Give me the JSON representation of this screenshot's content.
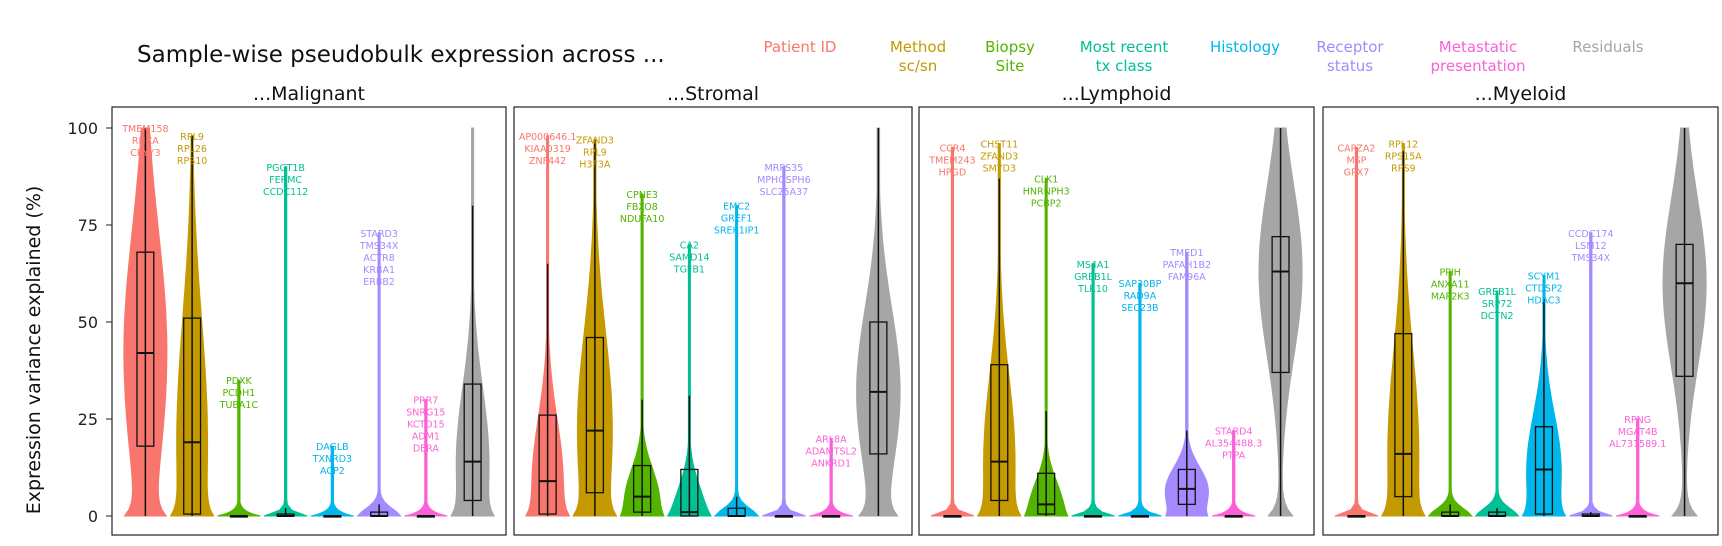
{
  "chart_data": {
    "type": "violin",
    "title": "Sample-wise pseudobulk expression across ...",
    "ylabel": "Expression variance explained (%)",
    "ylim": [
      0,
      100
    ],
    "yticks": [
      0,
      25,
      50,
      75,
      100
    ],
    "legend_placement": "top",
    "legend": [
      {
        "label": "Patient ID",
        "color": "#F8766D"
      },
      {
        "label": "Method\nsc/sn",
        "color": "#C49A00"
      },
      {
        "label": "Biopsy\nSite",
        "color": "#53B400"
      },
      {
        "label": "Most recent\ntx class",
        "color": "#00C094"
      },
      {
        "label": "Histology",
        "color": "#00B6EB"
      },
      {
        "label": "Receptor\nstatus",
        "color": "#A58AFF"
      },
      {
        "label": "Metastatic\npresentation",
        "color": "#FB61D7"
      },
      {
        "label": "Residuals",
        "color": "#A6A6A6"
      }
    ],
    "panels": [
      {
        "title": "...Malignant",
        "violins": [
          {
            "median": 42,
            "q1": 18,
            "q3": 68,
            "wlo": 0,
            "whi": 100,
            "max": 100,
            "genes": [
              "TMEM158",
              "RHCA",
              "CRYY3"
            ]
          },
          {
            "median": 19,
            "q1": 0.5,
            "q3": 51,
            "wlo": 0,
            "whi": 98,
            "max": 98,
            "genes": [
              "RPL9",
              "RPL26",
              "RPS10"
            ]
          },
          {
            "median": 0,
            "q1": 0,
            "q3": 0,
            "wlo": 0,
            "whi": 0,
            "max": 35,
            "genes": [
              "PDXK",
              "PCDH1",
              "TUBA1C"
            ]
          },
          {
            "median": 0,
            "q1": 0,
            "q3": 0.5,
            "wlo": 0,
            "whi": 2,
            "max": 90,
            "genes": [
              "PGGT1B",
              "FERMC",
              "CCDC112"
            ]
          },
          {
            "median": 0,
            "q1": 0,
            "q3": 0,
            "wlo": 0,
            "whi": 0,
            "max": 18,
            "genes": [
              "DAGLB",
              "TXNRD3",
              "ACP2"
            ]
          },
          {
            "median": 0,
            "q1": 0,
            "q3": 1,
            "wlo": 0,
            "whi": 3,
            "max": 73,
            "genes": [
              "STARD3",
              "TMS34X",
              "ACTR8",
              "KRBA1",
              "ERBB2"
            ]
          },
          {
            "median": 0,
            "q1": 0,
            "q3": 0,
            "wlo": 0,
            "whi": 0,
            "max": 30,
            "genes": [
              "PRR7",
              "SNRG15",
              "KCTD15",
              "ADM1",
              "DERA"
            ]
          },
          {
            "median": 14,
            "q1": 4,
            "q3": 34,
            "wlo": 0,
            "whi": 80,
            "max": 100,
            "genes": []
          }
        ]
      },
      {
        "title": "...Stromal",
        "violins": [
          {
            "median": 9,
            "q1": 0.5,
            "q3": 26,
            "wlo": 0,
            "whi": 65,
            "max": 98,
            "genes": [
              "AP000646.1",
              "KIAA0319",
              "ZNF442"
            ]
          },
          {
            "median": 22,
            "q1": 6,
            "q3": 46,
            "wlo": 0,
            "whi": 97,
            "max": 97,
            "genes": [
              "ZFAND3",
              "RPL9",
              "H3F3A"
            ]
          },
          {
            "median": 5,
            "q1": 1,
            "q3": 13,
            "wlo": 0,
            "whi": 30,
            "max": 83,
            "genes": [
              "CPNE3",
              "FBXO8",
              "NDUFA10"
            ]
          },
          {
            "median": 1,
            "q1": 0,
            "q3": 12,
            "wlo": 0,
            "whi": 31,
            "max": 70,
            "genes": [
              "CA2",
              "SAMD14",
              "TGFB1"
            ]
          },
          {
            "median": 0,
            "q1": 0,
            "q3": 2,
            "wlo": 0,
            "whi": 5,
            "max": 80,
            "genes": [
              "EMC2",
              "GREF1",
              "SREK1IP1"
            ]
          },
          {
            "median": 0,
            "q1": 0,
            "q3": 0,
            "wlo": 0,
            "whi": 0,
            "max": 90,
            "genes": [
              "MRPS35",
              "MPHOSPH6",
              "SLC25A37"
            ]
          },
          {
            "median": 0,
            "q1": 0,
            "q3": 0,
            "wlo": 0,
            "whi": 0,
            "max": 20,
            "genes": [
              "ARL8A",
              "ADAMTSL2",
              "ANKRD1"
            ]
          },
          {
            "median": 32,
            "q1": 16,
            "q3": 50,
            "wlo": 0,
            "whi": 100,
            "max": 100,
            "genes": []
          }
        ]
      },
      {
        "title": "...Lymphoid",
        "violins": [
          {
            "median": 0,
            "q1": 0,
            "q3": 0,
            "wlo": 0,
            "whi": 0,
            "max": 95,
            "genes": [
              "CCR4",
              "TMEM243",
              "HPGD"
            ]
          },
          {
            "median": 14,
            "q1": 4,
            "q3": 39,
            "wlo": 0,
            "whi": 87,
            "max": 96,
            "genes": [
              "CHST11",
              "ZFAND3",
              "SMYD3"
            ]
          },
          {
            "median": 3,
            "q1": 0.5,
            "q3": 11,
            "wlo": 0,
            "whi": 27,
            "max": 87,
            "genes": [
              "CLK1",
              "HNRNPH3",
              "PCBP2"
            ]
          },
          {
            "median": 0,
            "q1": 0,
            "q3": 0,
            "wlo": 0,
            "whi": 0,
            "max": 65,
            "genes": [
              "MS4A1",
              "GREB1L",
              "TLR10"
            ]
          },
          {
            "median": 0,
            "q1": 0,
            "q3": 0,
            "wlo": 0,
            "whi": 0,
            "max": 60,
            "genes": [
              "SAP30BP",
              "RAD9A",
              "SEC23B"
            ]
          },
          {
            "median": 7,
            "q1": 3,
            "q3": 12,
            "wlo": 0,
            "whi": 22,
            "max": 68,
            "genes": [
              "TMED1",
              "PAFAH1B2",
              "FAM96A"
            ]
          },
          {
            "median": 0,
            "q1": 0,
            "q3": 0,
            "wlo": 0,
            "whi": 0,
            "max": 22,
            "genes": [
              "STARD4",
              "AL354488.3",
              "PTPA"
            ]
          },
          {
            "median": 63,
            "q1": 37,
            "q3": 72,
            "wlo": 0,
            "whi": 100,
            "max": 100,
            "genes": []
          }
        ]
      },
      {
        "title": "...Myeloid",
        "violins": [
          {
            "median": 0,
            "q1": 0,
            "q3": 0,
            "wlo": 0,
            "whi": 0,
            "max": 95,
            "genes": [
              "CAPZA2",
              "MSP",
              "GPX7"
            ]
          },
          {
            "median": 16,
            "q1": 5,
            "q3": 47,
            "wlo": 0,
            "whi": 94,
            "max": 96,
            "genes": [
              "RPL12",
              "RPS15A",
              "RPS9"
            ]
          },
          {
            "median": 0,
            "q1": 0,
            "q3": 1,
            "wlo": 0,
            "whi": 3,
            "max": 63,
            "genes": [
              "PPIH",
              "ANXA11",
              "MAP2K3"
            ]
          },
          {
            "median": 0,
            "q1": 0,
            "q3": 1,
            "wlo": 0,
            "whi": 2,
            "max": 58,
            "genes": [
              "GREB1L",
              "SRP72",
              "DCTN2"
            ]
          },
          {
            "median": 12,
            "q1": 0.5,
            "q3": 23,
            "wlo": 0,
            "whi": 56,
            "max": 62,
            "genes": [
              "SCYM1",
              "CTDSP2",
              "HDAC3"
            ]
          },
          {
            "median": 0,
            "q1": 0,
            "q3": 0.5,
            "wlo": 0,
            "whi": 1,
            "max": 73,
            "genes": [
              "CCDC174",
              "LSM12",
              "TMS34X"
            ]
          },
          {
            "median": 0,
            "q1": 0,
            "q3": 0,
            "wlo": 0,
            "whi": 0,
            "max": 25,
            "genes": [
              "RPNG",
              "MGAT4B",
              "AL731589.1"
            ]
          },
          {
            "median": 60,
            "q1": 36,
            "q3": 70,
            "wlo": 0,
            "whi": 100,
            "max": 100,
            "genes": []
          }
        ]
      }
    ]
  }
}
